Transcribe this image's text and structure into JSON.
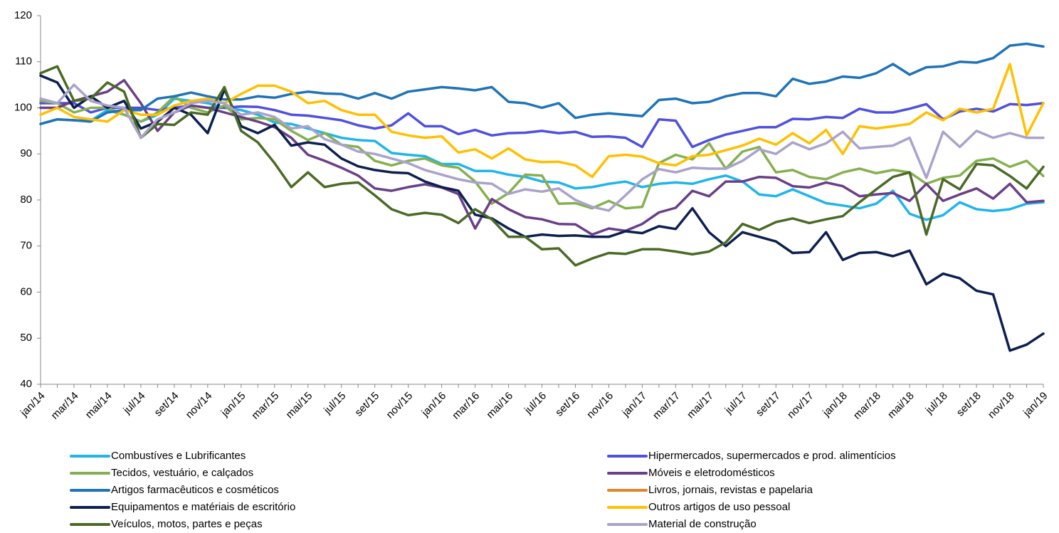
{
  "chart_data": {
    "type": "line",
    "categories": [
      "jan/14",
      null,
      "mar/14",
      null,
      "mai/14",
      null,
      "jul/14",
      null,
      "set/14",
      null,
      "nov/14",
      null,
      "jan/15",
      null,
      "mar/15",
      null,
      "mai/15",
      null,
      "jul/15",
      null,
      "set/15",
      null,
      "nov/15",
      null,
      "jan/16",
      null,
      "mar/16",
      null,
      "mai/16",
      null,
      "jul/16",
      null,
      "set/16",
      null,
      "nov/16",
      null,
      "jan/17",
      null,
      "mar/17",
      null,
      "mai/17",
      null,
      "jul/17",
      null,
      "set/17",
      null,
      "nov/17",
      null,
      "jan/18",
      null,
      "mar/18",
      null,
      "mai/18",
      null,
      "jul/18",
      null,
      "set/18",
      null,
      "nov/18",
      null,
      "jan/19"
    ],
    "ylim": [
      40,
      120
    ],
    "yticks": [
      40,
      50,
      60,
      70,
      80,
      90,
      100,
      110,
      120
    ],
    "series": [
      {
        "name": "Combustíves e Lubrificantes",
        "color": "#1fb5ea",
        "values": [
          96.5,
          97.5,
          97.3,
          97.2,
          99.5,
          98.5,
          97,
          98.5,
          102,
          101.5,
          101,
          100,
          99.5,
          98.5,
          96.8,
          96.5,
          95.5,
          94.5,
          93.5,
          93,
          92.8,
          90.2,
          89.8,
          89.5,
          87.8,
          87.8,
          86.3,
          86.3,
          85.5,
          85,
          84,
          83.8,
          82.5,
          82.8,
          83.5,
          84,
          82.8,
          83.5,
          83.8,
          83.5,
          84.5,
          85.3,
          84,
          81.2,
          80.8,
          82.3,
          80.8,
          79.3,
          78.8,
          78.2,
          79.2,
          82,
          77,
          75.7,
          76.7,
          79.5,
          78,
          77.6,
          78,
          79.2,
          79.5
        ]
      },
      {
        "name": "Hipermercados, supermercados e prod. alimentícios",
        "color": "#5050e0",
        "values": [
          101,
          101,
          101,
          99,
          100,
          100,
          100,
          99.5,
          100,
          100.5,
          100,
          100,
          100.3,
          100.2,
          99.5,
          98.5,
          98.3,
          97.8,
          97.3,
          96.2,
          95.5,
          96.2,
          98.8,
          96,
          96,
          94.3,
          95.2,
          94,
          94.5,
          94.6,
          95,
          94.5,
          94.8,
          93.7,
          93.8,
          93.5,
          91.5,
          97.5,
          97.2,
          91.5,
          93,
          94.2,
          95,
          95.8,
          95.8,
          97.6,
          97.5,
          98,
          97.8,
          99.8,
          99,
          99,
          99.8,
          100.8,
          97.5,
          99.2,
          99.8,
          99.2,
          100.8,
          100.6,
          101
        ]
      },
      {
        "name": "Tecidos, vestuário, e calçados",
        "color": "#86b04f",
        "values": [
          101.5,
          101,
          99,
          100,
          100,
          98.5,
          97,
          99,
          102.5,
          100,
          99,
          100.5,
          97.5,
          97.8,
          97.5,
          95,
          93,
          94.5,
          92,
          91.5,
          88.5,
          87.5,
          88.5,
          89,
          87.5,
          87,
          84,
          79.2,
          81.5,
          85.5,
          85.3,
          79.2,
          79.3,
          78.2,
          79.8,
          78.2,
          78.5,
          88,
          89.8,
          88.8,
          92.3,
          86.8,
          90.5,
          91.5,
          86,
          86.5,
          85,
          84.5,
          86,
          86.8,
          85.8,
          86.5,
          86,
          83.5,
          84.8,
          85.3,
          88.5,
          89,
          87.2,
          88.5,
          85.2
        ]
      },
      {
        "name": "Móveis e eletrodomésticos",
        "color": "#6a3f88",
        "values": [
          100,
          100,
          101.5,
          102.5,
          103.5,
          106,
          101,
          95,
          99,
          100.5,
          100,
          99,
          98,
          97,
          95.8,
          93.5,
          89.8,
          88.5,
          87,
          85.3,
          82.5,
          82,
          82.8,
          83.4,
          82.7,
          81.3,
          73.8,
          80.2,
          78,
          76.3,
          75.8,
          74.8,
          74.7,
          72.5,
          73.8,
          73.3,
          74.8,
          77.3,
          78.3,
          82,
          80.8,
          84,
          84,
          85,
          84.8,
          83,
          82.7,
          83.8,
          83,
          80.8,
          81.2,
          81.5,
          79.8,
          83.5,
          79.8,
          81.2,
          82.5,
          80.3,
          83.5,
          79.5,
          79.8
        ]
      },
      {
        "name": "Artigos farmacêuticos e cosméticos",
        "color": "#1f73b7",
        "values": [
          96.5,
          97.5,
          97.3,
          97,
          99,
          99.5,
          99.5,
          102,
          102.5,
          103.3,
          102.5,
          101.8,
          101.8,
          102.5,
          102.2,
          103,
          103.5,
          103.1,
          103,
          102,
          103.2,
          102,
          103.5,
          104,
          104.5,
          104.2,
          103.8,
          104.5,
          101.3,
          101,
          100,
          101,
          97.8,
          98.5,
          98.8,
          98.5,
          98.2,
          101.7,
          102,
          101,
          101.3,
          102.5,
          103.2,
          103.2,
          102.5,
          106.3,
          105.2,
          105.7,
          106.8,
          106.5,
          107.5,
          109.5,
          107.2,
          108.8,
          109,
          110,
          109.8,
          110.8,
          113.5,
          113.9,
          113.3
        ]
      },
      {
        "name": "Livros, jornais, revistas e papelaria",
        "color": "#e0852f",
        "values": [
          null,
          null,
          null,
          null,
          null,
          null,
          null,
          null,
          null,
          null,
          null,
          null,
          null,
          null,
          null,
          null,
          null,
          null,
          null,
          null,
          null,
          null,
          null,
          null,
          null,
          null,
          null,
          null,
          null,
          null,
          null,
          null,
          null,
          null,
          null,
          null,
          null,
          null,
          null,
          null,
          null,
          null,
          null,
          null,
          null,
          null,
          null,
          null,
          null,
          null,
          null,
          null,
          null,
          null,
          null,
          null,
          null,
          null,
          null,
          null,
          null
        ]
      },
      {
        "name": "Equipamentos e matériais de escritório",
        "color": "#0c1f4e",
        "values": [
          107,
          105.5,
          100,
          102.5,
          100,
          101.5,
          95.5,
          97,
          100,
          98.5,
          94.5,
          104,
          96,
          94.5,
          96.3,
          91.8,
          92.5,
          92,
          89,
          87.3,
          86.5,
          86,
          85.8,
          84,
          82.8,
          82,
          76.8,
          76,
          73.8,
          72,
          72.5,
          72.2,
          72.3,
          72,
          72,
          73.2,
          72.8,
          74.3,
          73.7,
          78.2,
          73,
          70,
          73,
          72,
          71,
          68.5,
          68.7,
          73,
          67,
          68.5,
          68.7,
          67.8,
          69,
          61.7,
          64,
          63,
          60.3,
          59.5,
          47.3,
          48.6,
          51
        ]
      },
      {
        "name": "Outros artigos de uso pessoal",
        "color": "#ffc000",
        "values": [
          98.5,
          100,
          98,
          97.5,
          97,
          99.5,
          98.5,
          98.5,
          100.5,
          101.5,
          102,
          101,
          103,
          104.8,
          104.8,
          103.5,
          101,
          101.5,
          99.5,
          98.5,
          98.5,
          94.8,
          94,
          93.5,
          93.8,
          90.3,
          91,
          89,
          91.2,
          88.8,
          88.2,
          88.3,
          87.5,
          85,
          89.5,
          89.8,
          89.4,
          88,
          87.5,
          89.5,
          89.8,
          90.8,
          91.8,
          93.3,
          92,
          94.5,
          92.3,
          95.2,
          90,
          96,
          95.5,
          96,
          96.5,
          99,
          97.3,
          99.8,
          99,
          99.8,
          109.5,
          94,
          101
        ]
      },
      {
        "name": "Veículos, motos, partes e peças",
        "color": "#4a6a25",
        "values": [
          107.5,
          109,
          101.5,
          102,
          105.5,
          103.5,
          93.5,
          96.5,
          96.3,
          99,
          98.5,
          104.5,
          95,
          92.5,
          88,
          82.8,
          86,
          82.8,
          83.5,
          83.8,
          81,
          78,
          76.7,
          77.2,
          76.8,
          75,
          78,
          75.8,
          72,
          72,
          69.3,
          69.5,
          65.8,
          67.3,
          68.5,
          68.3,
          69.3,
          69.3,
          68.8,
          68.2,
          68.8,
          70.8,
          74.8,
          73.5,
          75.2,
          76,
          75,
          75.8,
          76.5,
          79.5,
          82.3,
          85,
          86,
          72.5,
          84.5,
          82.3,
          87.8,
          87.5,
          85.2,
          82.5,
          87.2
        ]
      },
      {
        "name": "Material de construção",
        "color": "#a9a3cc",
        "values": [
          102,
          101,
          105,
          101.5,
          100.5,
          100,
          93.5,
          97.5,
          99,
          101,
          101.5,
          101,
          98.5,
          99,
          98,
          95.5,
          96,
          93.2,
          92,
          90.5,
          90,
          89,
          88,
          86.5,
          85.5,
          84.5,
          83.8,
          83.5,
          81.3,
          82.3,
          81.8,
          82.5,
          80,
          78.5,
          77.7,
          81,
          84.5,
          86.7,
          86,
          87,
          86.8,
          86.8,
          88.5,
          91,
          90,
          92.5,
          91,
          92.3,
          94.8,
          91.2,
          91.5,
          91.8,
          93.5,
          84.8,
          94.8,
          91.5,
          95,
          93.5,
          94.5,
          93.5,
          93.5
        ]
      }
    ]
  }
}
